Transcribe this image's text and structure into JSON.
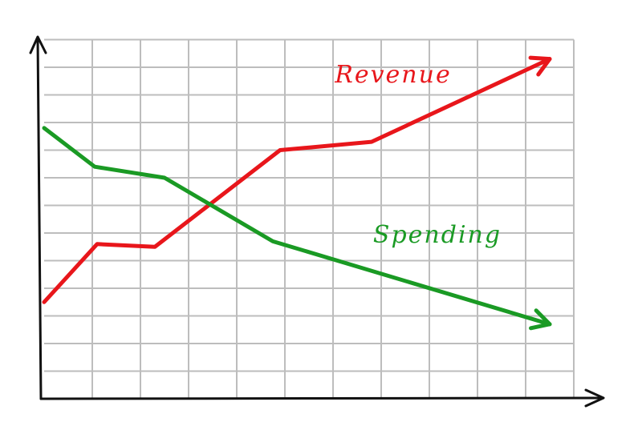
{
  "chart_data": {
    "type": "line",
    "series": [
      {
        "name": "Revenue",
        "color": "#e8161b",
        "x": [
          0,
          1.1,
          2.3,
          4.9,
          6.8,
          10.5
        ],
        "values": [
          3.5,
          5.6,
          5.5,
          9.0,
          9.3,
          12.3
        ]
      },
      {
        "name": "Spending",
        "color": "#1a9a24",
        "x": [
          0,
          1.05,
          2.5,
          4.75,
          10.5
        ],
        "values": [
          9.8,
          8.4,
          8.0,
          5.7,
          2.7
        ]
      }
    ],
    "xlim": [
      0,
      11.6
    ],
    "ylim": [
      0,
      13.2
    ],
    "xticks": [
      1,
      2,
      3,
      4,
      5,
      6,
      7,
      8,
      9,
      10,
      11
    ],
    "yticks": [
      1,
      2,
      3,
      4,
      5,
      6,
      7,
      8,
      9,
      10,
      11,
      12,
      13
    ],
    "grid": true
  }
}
